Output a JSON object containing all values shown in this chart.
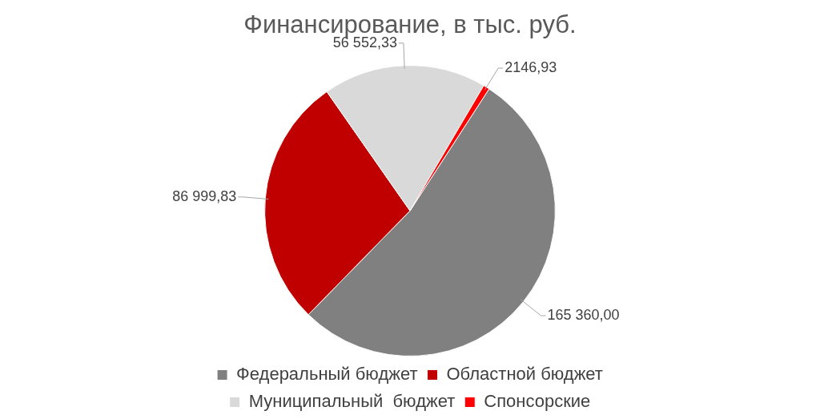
{
  "chart_data": {
    "type": "pie",
    "title": "Финансирование, в тыс. руб.",
    "categories": [
      "Федеральный бюджет",
      "Областной бюджет",
      "Муниципальный  бюджет",
      "Спонсорские"
    ],
    "values": [
      165360.0,
      86999.83,
      56552.33,
      2146.93
    ],
    "colors": [
      "#808080",
      "#c00000",
      "#d9d9d9",
      "#ff0000"
    ],
    "value_labels": [
      "165 360,00",
      "86 999,83",
      "56 552,33",
      "2146,93"
    ],
    "legend": "bottom"
  }
}
